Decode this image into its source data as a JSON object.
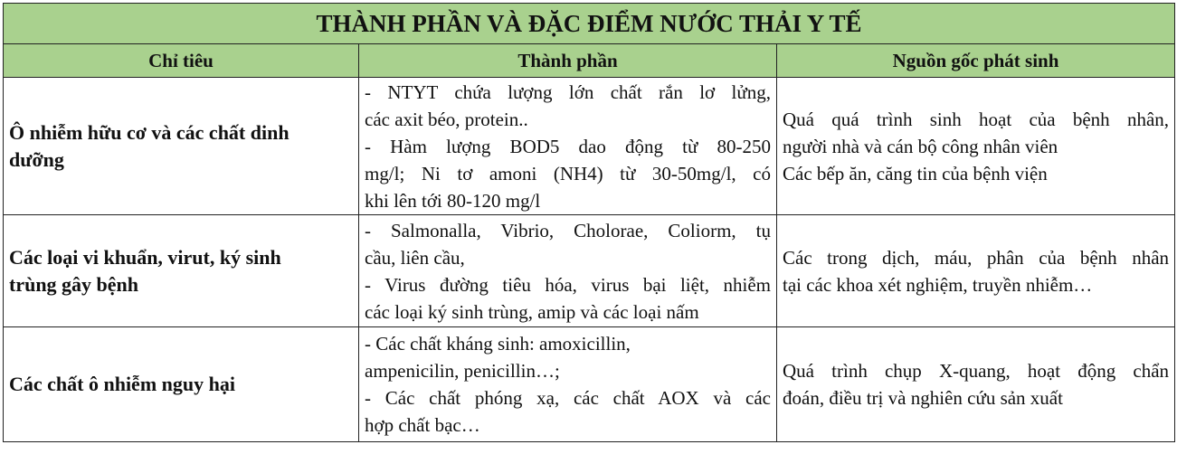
{
  "title": "THÀNH PHẦN VÀ ĐẶC ĐIỂM NƯỚC THẢI Y TẾ",
  "headers": [
    "Chỉ tiêu",
    "Thành phần",
    "Nguồn gốc phát sinh"
  ],
  "rows": [
    {
      "criterion": [
        "Ô nhiễm hữu cơ và các chất dinh",
        "dưỡng"
      ],
      "composition": [
        {
          "text": "- NTYT chứa lượng lớn chất rắn lơ lửng,",
          "justify": true
        },
        {
          "text": "các axit béo, protein..",
          "justify": false
        },
        {
          "text": "- Hàm lượng BOD5 dao động từ 80-250",
          "justify": true
        },
        {
          "text": "mg/l; Ni tơ amoni (NH4) từ 30-50mg/l, có",
          "justify": true
        },
        {
          "text": "khi lên tới 80-120 mg/l",
          "justify": false
        }
      ],
      "source": [
        {
          "text": "Quá quá trình sinh hoạt của bệnh nhân,",
          "justify": true
        },
        {
          "text": "người nhà và cán bộ công nhân viên",
          "justify": false
        },
        {
          "text": "Các bếp ăn, căng tin của bệnh viện",
          "justify": false
        }
      ]
    },
    {
      "criterion": [
        "Các loại vi khuẩn, virut, ký sinh",
        "trùng gây bệnh"
      ],
      "composition": [
        {
          "text": "- Salmonalla, Vibrio, Cholorae, Coliorm, tụ",
          "justify": true
        },
        {
          "text": "cầu, liên cầu,",
          "justify": false
        },
        {
          "text": "- Virus đường tiêu hóa, virus bại liệt, nhiễm",
          "justify": true
        },
        {
          "text": "các loại ký sinh trùng, amip và các loại nấm",
          "justify": false
        }
      ],
      "source": [
        {
          "text": "Các trong dịch, máu, phân của bệnh nhân",
          "justify": true
        },
        {
          "text": "tại các khoa xét nghiệm, truyền nhiễm…",
          "justify": false
        }
      ]
    },
    {
      "criterion": [
        "Các chất ô nhiễm nguy hại"
      ],
      "composition": [
        {
          "text": "- Các chất kháng sinh: amoxicillin,",
          "justify": false
        },
        {
          "text": "ampenicilin, penicillin…;",
          "justify": false
        },
        {
          "text": "- Các chất phóng xạ, các chất AOX và các",
          "justify": true
        },
        {
          "text": "hợp chất bạc…",
          "justify": false
        }
      ],
      "source": [
        {
          "text": "Quá trình chụp X-quang, hoạt động chẩn",
          "justify": true
        },
        {
          "text": "đoán, điều trị và nghiên cứu sản xuất",
          "justify": false
        }
      ]
    }
  ],
  "colors": {
    "header_bg": "#a9d18e",
    "border": "#222222"
  }
}
